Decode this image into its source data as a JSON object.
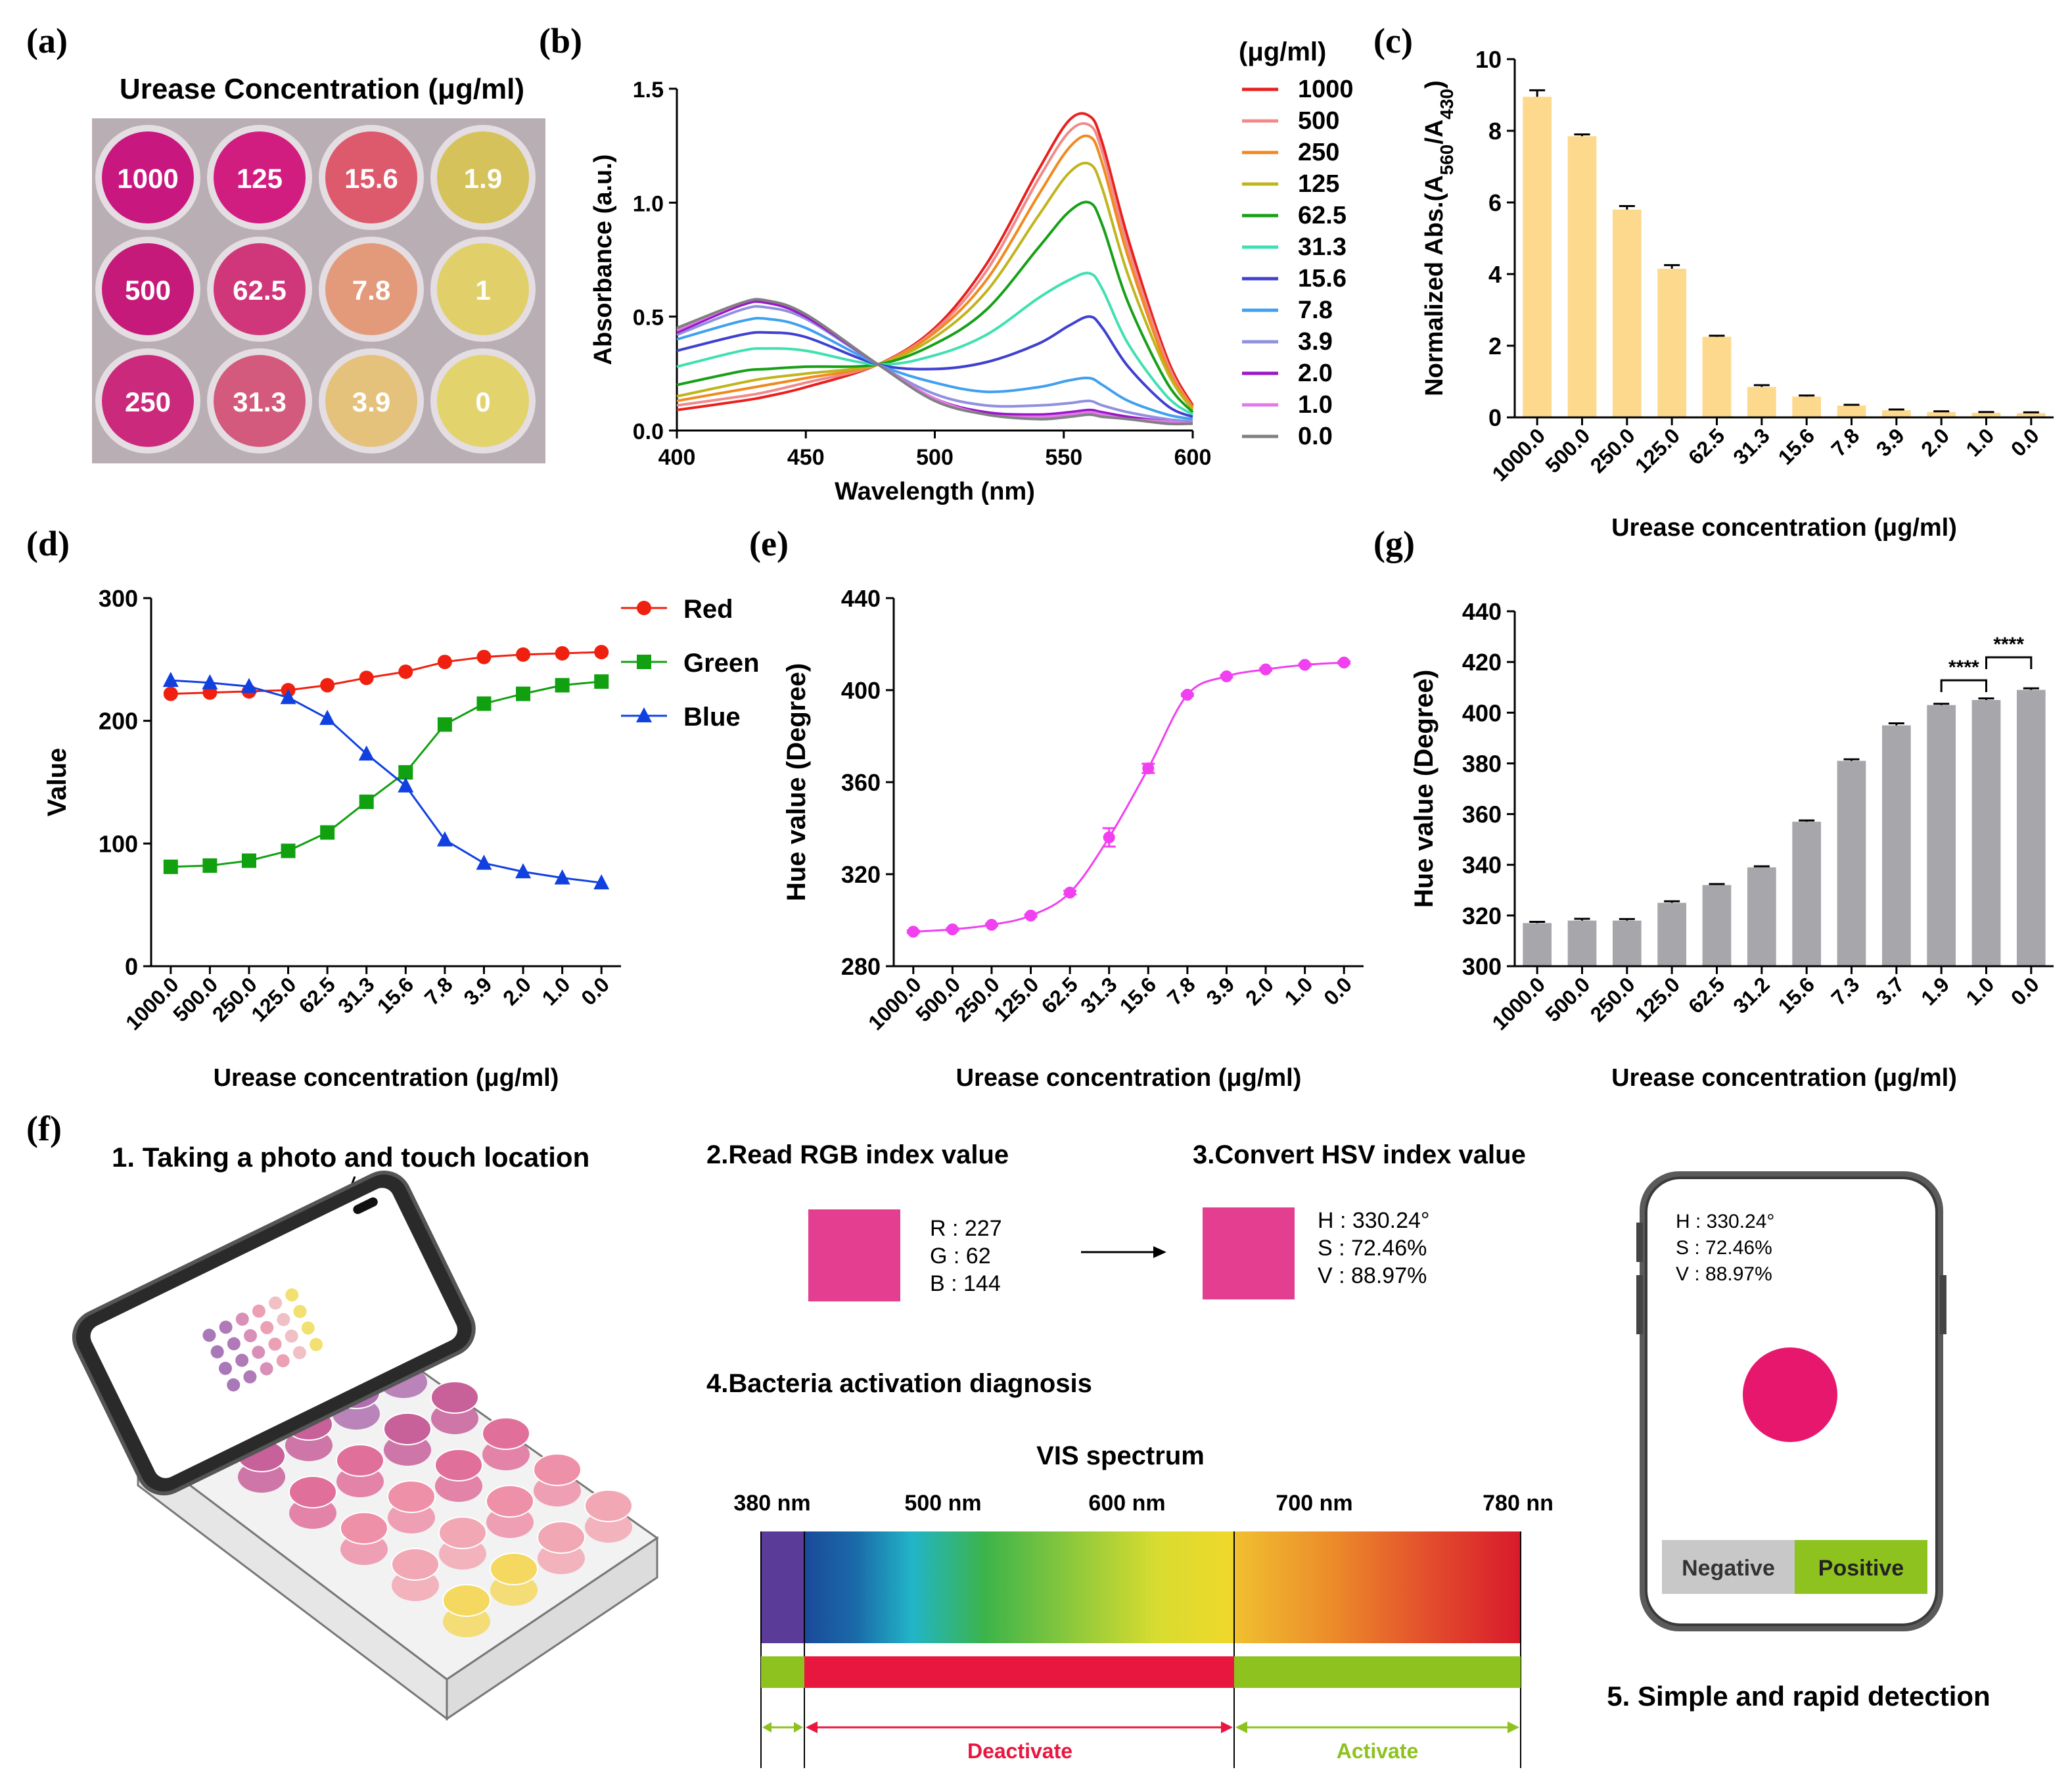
{
  "panels": {
    "a": {
      "letter": "(a)",
      "title": "Urease Concentration (μg/ml)",
      "wells": [
        [
          "1000",
          "125",
          "15.6",
          "1.9"
        ],
        [
          "500",
          "62.5",
          "7.8",
          "1"
        ],
        [
          "250",
          "31.3",
          "3.9",
          "0"
        ]
      ],
      "well_colors": [
        [
          "#c8177e",
          "#d21d80",
          "#dc5a6c",
          "#d6c25a"
        ],
        [
          "#c51a7a",
          "#d0377a",
          "#e39a7a",
          "#e1d06a"
        ],
        [
          "#cb2a7c",
          "#d35a7d",
          "#e4c27c",
          "#e2d36c"
        ]
      ]
    },
    "b": {
      "letter": "(b)"
    },
    "c": {
      "letter": "(c)"
    },
    "d": {
      "letter": "(d)"
    },
    "e": {
      "letter": "(e)"
    },
    "g": {
      "letter": "(g)"
    },
    "f": {
      "letter": "(f)",
      "step1": "1. Taking a photo and touch location",
      "step2": "2.Read RGB index value",
      "step3": "3.Convert HSV index value",
      "step4": "4.Bacteria activation diagnosis",
      "step5": "5. Simple and rapid detection",
      "rgb": [
        "R : 227",
        "G : 62",
        "B : 144"
      ],
      "hsv": [
        "H : 330.24°",
        "S : 72.46%",
        "V : 88.97%"
      ],
      "swatch_color": "#e33e90",
      "dot_color": "#e8176e",
      "spectrum_title": "VIS spectrum",
      "spectrum_ticks": [
        "380 nm",
        "500 nm",
        "600 nm",
        "700 nm",
        "780 nn"
      ],
      "deactivate": "Deactivate",
      "activate": "Activate",
      "negative": "Negative",
      "positive": "Positive"
    }
  },
  "chart_data": [
    {
      "id": "b",
      "type": "line",
      "xlabel": "Wavelength (nm)",
      "ylabel": "Absorbance (a.u.)",
      "xlim": [
        400,
        600
      ],
      "ylim": [
        0,
        1.5
      ],
      "xticks": [
        "400",
        "450",
        "500",
        "550",
        "600"
      ],
      "yticks": [
        "0.0",
        "0.5",
        "1.0",
        "1.5"
      ],
      "legend_title": "(μg/ml)",
      "legend_position": "right",
      "x": [
        400,
        425,
        435,
        450,
        478,
        500,
        520,
        540,
        552,
        560,
        565,
        575,
        590,
        600
      ],
      "series": [
        {
          "name": "1000",
          "color": "#e8201e",
          "values": [
            0.09,
            0.13,
            0.15,
            0.19,
            0.29,
            0.45,
            0.73,
            1.14,
            1.36,
            1.38,
            1.26,
            0.84,
            0.32,
            0.11
          ]
        },
        {
          "name": "500",
          "color": "#f08a8a",
          "values": [
            0.11,
            0.15,
            0.17,
            0.21,
            0.29,
            0.44,
            0.7,
            1.1,
            1.31,
            1.34,
            1.22,
            0.8,
            0.3,
            0.1
          ]
        },
        {
          "name": "250",
          "color": "#f08a20",
          "values": [
            0.13,
            0.18,
            0.2,
            0.23,
            0.29,
            0.43,
            0.66,
            1.03,
            1.24,
            1.29,
            1.17,
            0.76,
            0.28,
            0.1
          ]
        },
        {
          "name": "125",
          "color": "#c0b41e",
          "values": [
            0.15,
            0.21,
            0.23,
            0.25,
            0.29,
            0.41,
            0.61,
            0.94,
            1.13,
            1.17,
            1.06,
            0.68,
            0.26,
            0.09
          ]
        },
        {
          "name": "62.5",
          "color": "#17a017",
          "values": [
            0.2,
            0.26,
            0.27,
            0.28,
            0.29,
            0.38,
            0.53,
            0.8,
            0.96,
            1.0,
            0.9,
            0.56,
            0.21,
            0.08
          ]
        },
        {
          "name": "31.3",
          "color": "#40e0b0",
          "values": [
            0.28,
            0.35,
            0.36,
            0.35,
            0.29,
            0.33,
            0.42,
            0.58,
            0.66,
            0.69,
            0.62,
            0.38,
            0.15,
            0.07
          ]
        },
        {
          "name": "15.6",
          "color": "#4040d0",
          "values": [
            0.35,
            0.42,
            0.43,
            0.41,
            0.29,
            0.27,
            0.3,
            0.38,
            0.46,
            0.5,
            0.45,
            0.28,
            0.11,
            0.06
          ]
        },
        {
          "name": "7.8",
          "color": "#40a0f0",
          "values": [
            0.4,
            0.48,
            0.49,
            0.45,
            0.29,
            0.21,
            0.17,
            0.19,
            0.22,
            0.23,
            0.2,
            0.13,
            0.07,
            0.05
          ]
        },
        {
          "name": "3.9",
          "color": "#9090e0",
          "values": [
            0.42,
            0.53,
            0.54,
            0.49,
            0.29,
            0.16,
            0.11,
            0.11,
            0.12,
            0.13,
            0.11,
            0.08,
            0.05,
            0.04
          ]
        },
        {
          "name": "2.0",
          "color": "#9a17c8",
          "values": [
            0.43,
            0.55,
            0.56,
            0.5,
            0.29,
            0.14,
            0.08,
            0.07,
            0.08,
            0.09,
            0.08,
            0.06,
            0.04,
            0.03
          ]
        },
        {
          "name": "1.0",
          "color": "#e07ae8",
          "values": [
            0.44,
            0.56,
            0.57,
            0.51,
            0.29,
            0.14,
            0.07,
            0.06,
            0.07,
            0.08,
            0.07,
            0.05,
            0.04,
            0.03
          ]
        },
        {
          "name": "0.0",
          "color": "#808080",
          "values": [
            0.45,
            0.56,
            0.57,
            0.51,
            0.29,
            0.13,
            0.07,
            0.05,
            0.06,
            0.07,
            0.06,
            0.05,
            0.03,
            0.03
          ]
        }
      ]
    },
    {
      "id": "c",
      "type": "bar",
      "xlabel": "Urease concentration (μg/ml)",
      "ylabel": "Normalized Abs.(A",
      "ylabel_sub1": "560",
      "ylabel_mid": "/A",
      "ylabel_sub2": "430",
      "ylabel_end": ")",
      "ylim": [
        0,
        10
      ],
      "yticks": [
        "0",
        "2",
        "4",
        "6",
        "8",
        "10"
      ],
      "color": "#fdd98e",
      "categories": [
        "1000.0",
        "500.0",
        "250.0",
        "125.0",
        "62.5",
        "31.3",
        "15.6",
        "7.8",
        "3.9",
        "2.0",
        "1.0",
        "0.0"
      ],
      "values": [
        8.95,
        7.85,
        5.8,
        4.15,
        2.25,
        0.85,
        0.58,
        0.33,
        0.2,
        0.15,
        0.13,
        0.12
      ],
      "errors": [
        0.18,
        0.05,
        0.1,
        0.1,
        0.03,
        0.05,
        0.03,
        0.02,
        0.02,
        0.02,
        0.02,
        0.02
      ]
    },
    {
      "id": "d",
      "type": "line",
      "xlabel": "Urease concentration (μg/ml)",
      "ylabel": "Value",
      "ylim": [
        0,
        300
      ],
      "yticks": [
        "0",
        "100",
        "200",
        "300"
      ],
      "legend_position": "top-right",
      "categories": [
        "1000.0",
        "500.0",
        "250.0",
        "125.0",
        "62.5",
        "31.3",
        "15.6",
        "7.8",
        "3.9",
        "2.0",
        "1.0",
        "0.0"
      ],
      "series": [
        {
          "name": "Red",
          "color": "#f02010",
          "marker": "circle",
          "values": [
            222,
            223,
            224,
            225,
            229,
            235,
            240,
            248,
            252,
            254,
            255,
            256
          ]
        },
        {
          "name": "Green",
          "color": "#10a010",
          "marker": "square",
          "values": [
            81,
            82,
            86,
            94,
            109,
            134,
            158,
            197,
            214,
            222,
            229,
            232
          ]
        },
        {
          "name": "Blue",
          "color": "#1040e0",
          "marker": "triangle",
          "values": [
            233,
            231,
            228,
            219,
            202,
            173,
            147,
            103,
            84,
            77,
            72,
            68
          ]
        }
      ]
    },
    {
      "id": "e",
      "type": "line",
      "xlabel": "Urease concentration (μg/ml)",
      "ylabel": "Hue value (Degree)",
      "ylim": [
        280,
        440
      ],
      "yticks": [
        "280",
        "320",
        "360",
        "400",
        "440"
      ],
      "color": "#f040f0",
      "categories": [
        "1000.0",
        "500.0",
        "250.0",
        "125.0",
        "62.5",
        "31.3",
        "15.6",
        "7.8",
        "3.9",
        "2.0",
        "1.0",
        "0.0"
      ],
      "values": [
        295,
        296,
        298,
        302,
        312,
        336,
        366,
        398,
        406,
        409,
        411,
        412
      ],
      "errors": [
        0.5,
        0.5,
        0.5,
        0.5,
        0.8,
        4,
        2,
        0.5,
        0.5,
        0.5,
        0.5,
        0.5
      ]
    },
    {
      "id": "g",
      "type": "bar",
      "xlabel": "Urease concentration (μg/ml)",
      "ylabel": "Hue value (Degree)",
      "ylim": [
        300,
        440
      ],
      "yticks": [
        "300",
        "320",
        "340",
        "360",
        "380",
        "400",
        "420",
        "440"
      ],
      "color": "#a7a7ab",
      "categories": [
        "1000.0",
        "500.0",
        "250.0",
        "125.0",
        "62.5",
        "31.2",
        "15.6",
        "7.3",
        "3.7",
        "1.9",
        "1.0",
        "0.0"
      ],
      "values": [
        317,
        318,
        318,
        325,
        332,
        339,
        357,
        381,
        395,
        403,
        405,
        409
      ],
      "errors": [
        0.5,
        0.7,
        0.6,
        0.6,
        0.4,
        0.4,
        0.5,
        0.6,
        0.8,
        0.5,
        0.6,
        0.6
      ],
      "annotations": [
        "****",
        "****"
      ]
    }
  ]
}
